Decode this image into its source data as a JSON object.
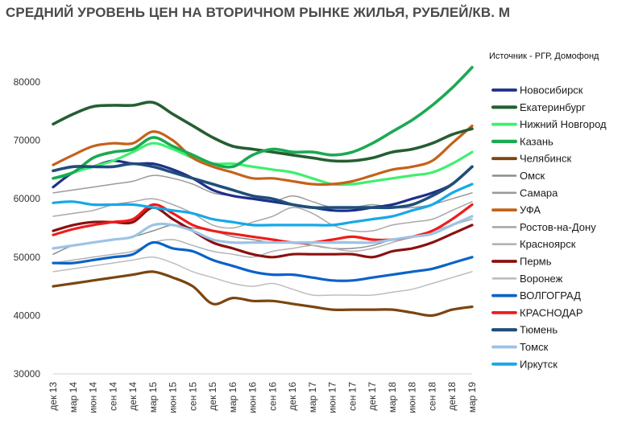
{
  "title": "СРЕДНИЙ УРОВЕНЬ ЦЕН НА ВТОРИЧНОМ РЫНКЕ ЖИЛЬЯ, РУБЛЕЙ/КВ. М",
  "source": "Источник - РГР, Домофонд",
  "chart_data": {
    "type": "line",
    "title": "СРЕДНИЙ УРОВЕНЬ ЦЕН НА ВТОРИЧНОМ РЫНКЕ ЖИЛЬЯ, РУБЛЕЙ/КВ. М",
    "xlabel": "",
    "ylabel": "",
    "ylim": [
      30000,
      80000
    ],
    "yticks": [
      "30000",
      "40000",
      "50000",
      "60000",
      "70000",
      "80000"
    ],
    "x": [
      "дек 13",
      "мар 14",
      "июн 14",
      "сен 14",
      "дек 14",
      "мар 15",
      "июн 15",
      "сен 15",
      "дек 15",
      "мар 16",
      "июн 16",
      "сен 16",
      "дек 16",
      "мар 17",
      "июн 17",
      "сен 17",
      "дек 17",
      "мар 18",
      "июн 18",
      "сен 18",
      "дек 18",
      "мар 19"
    ],
    "grid": false,
    "legend": "right",
    "series": [
      {
        "name": "Новосибирск",
        "color": "#1f2e8c",
        "width": 3.2,
        "values": [
          62000,
          64500,
          65500,
          66500,
          66000,
          66000,
          65000,
          63500,
          61500,
          60500,
          60000,
          59500,
          59000,
          58500,
          58000,
          58000,
          58500,
          59000,
          60000,
          61000,
          62500,
          65500
        ]
      },
      {
        "name": "Екатеринбург",
        "color": "#255e31",
        "width": 3.6,
        "values": [
          72800,
          74500,
          75800,
          76000,
          76000,
          76500,
          74500,
          72500,
          70500,
          69000,
          68500,
          68000,
          67500,
          67000,
          66500,
          66500,
          67000,
          68000,
          68500,
          69500,
          71000,
          72000
        ]
      },
      {
        "name": "Нижний Новгород",
        "color": "#3ef06e",
        "width": 3.2,
        "values": [
          63500,
          64500,
          65500,
          66500,
          68000,
          69500,
          68500,
          67000,
          66000,
          66000,
          65500,
          65000,
          64500,
          63500,
          62500,
          62500,
          63000,
          63500,
          64000,
          64500,
          66000,
          68000
        ]
      },
      {
        "name": "Казань",
        "color": "#1aaa52",
        "width": 3.6,
        "values": [
          63500,
          64500,
          67000,
          68000,
          68500,
          70500,
          69000,
          67500,
          66000,
          65500,
          67500,
          68500,
          68000,
          68000,
          67500,
          68000,
          69500,
          71500,
          73500,
          76000,
          79000,
          82500
        ]
      },
      {
        "name": "Челябинск",
        "color": "#7b4510",
        "width": 3.2,
        "values": [
          45000,
          45500,
          46000,
          46500,
          47000,
          47500,
          46500,
          45000,
          42000,
          43000,
          42500,
          42500,
          42000,
          41500,
          41000,
          41000,
          41000,
          41000,
          40500,
          40000,
          41000,
          41500
        ]
      },
      {
        "name": "Омск",
        "color": "#8c8c8c",
        "width": 1.5,
        "values": [
          50500,
          52000,
          52500,
          53000,
          53500,
          54500,
          55500,
          55000,
          54500,
          53500,
          53000,
          52500,
          52500,
          52000,
          51500,
          51500,
          52000,
          53000,
          53500,
          54000,
          55500,
          56500
        ]
      },
      {
        "name": "Самара",
        "color": "#9a9a9a",
        "width": 1.5,
        "values": [
          61000,
          61500,
          62000,
          62500,
          63000,
          64000,
          63500,
          62500,
          61000,
          60500,
          60000,
          59500,
          60500,
          59500,
          58500,
          58500,
          59000,
          58500,
          58500,
          59000,
          60000,
          61000
        ]
      },
      {
        "name": "УФА",
        "color": "#c4621a",
        "width": 3.2,
        "values": [
          65800,
          67500,
          69000,
          69500,
          69500,
          71500,
          70000,
          67000,
          65500,
          64500,
          63500,
          63500,
          63000,
          62500,
          62500,
          63000,
          64000,
          65000,
          65500,
          66500,
          69500,
          72500
        ]
      },
      {
        "name": "Ростов-на-Дону",
        "color": "#a8a8a8",
        "width": 1.5,
        "values": [
          57000,
          57500,
          58000,
          59000,
          59500,
          60000,
          59000,
          57500,
          55500,
          55000,
          56000,
          57000,
          58500,
          57500,
          55500,
          54500,
          54500,
          55500,
          56000,
          56500,
          58000,
          59500
        ]
      },
      {
        "name": "Красноярск",
        "color": "#b2b2b2",
        "width": 1.5,
        "values": [
          49000,
          49500,
          50000,
          50500,
          51000,
          52500,
          53000,
          52000,
          51000,
          50500,
          50000,
          51000,
          51500,
          52000,
          51500,
          51000,
          51500,
          52500,
          53500,
          54500,
          55500,
          56500
        ]
      },
      {
        "name": "Пермь",
        "color": "#8b1010",
        "width": 3.2,
        "values": [
          54500,
          55500,
          56000,
          56000,
          56000,
          58500,
          56500,
          54500,
          52500,
          51500,
          50500,
          50000,
          50500,
          50500,
          50500,
          50500,
          50000,
          51000,
          51500,
          52500,
          54000,
          55500
        ]
      },
      {
        "name": "Воронеж",
        "color": "#bdbdbd",
        "width": 1.5,
        "values": [
          47500,
          48000,
          48500,
          49000,
          49500,
          50000,
          49000,
          47500,
          46500,
          45500,
          45000,
          45500,
          44500,
          43500,
          43500,
          43500,
          43500,
          44000,
          44500,
          45500,
          46500,
          47500
        ]
      },
      {
        "name": "ВОЛГОГРАД",
        "color": "#0a62c9",
        "width": 3.2,
        "values": [
          49000,
          49000,
          49500,
          50000,
          50500,
          52500,
          51500,
          51000,
          49500,
          48500,
          47500,
          47000,
          47000,
          46500,
          46000,
          46000,
          46500,
          47000,
          47500,
          48000,
          49000,
          50000
        ]
      },
      {
        "name": "КРАСНОДАР",
        "color": "#ee1c1c",
        "width": 3.2,
        "values": [
          53800,
          54800,
          55500,
          56000,
          56500,
          59000,
          57500,
          55500,
          54500,
          54000,
          53500,
          53000,
          52500,
          52500,
          53000,
          53500,
          53000,
          53000,
          53500,
          54500,
          56500,
          59000
        ]
      },
      {
        "name": "Тюмень",
        "color": "#1f4e79",
        "width": 3.6,
        "values": [
          64800,
          65500,
          65500,
          65500,
          66000,
          65500,
          64500,
          63500,
          62500,
          61500,
          60500,
          60000,
          59000,
          58500,
          58500,
          58500,
          58500,
          58500,
          59000,
          60500,
          62500,
          65500
        ]
      },
      {
        "name": "Томск",
        "color": "#9cc3e6",
        "width": 3.2,
        "values": [
          51500,
          52000,
          52500,
          53000,
          53500,
          55500,
          55500,
          54500,
          53000,
          52500,
          52500,
          52500,
          52500,
          52500,
          52500,
          52500,
          52500,
          53000,
          53500,
          54000,
          55500,
          57000
        ]
      },
      {
        "name": "Иркутск",
        "color": "#16a8e8",
        "width": 3.2,
        "values": [
          59300,
          59500,
          59000,
          59000,
          59000,
          58500,
          58000,
          57500,
          56500,
          56000,
          55500,
          55500,
          55500,
          55500,
          55500,
          56000,
          56500,
          57000,
          58000,
          59000,
          61000,
          62500
        ]
      }
    ]
  }
}
